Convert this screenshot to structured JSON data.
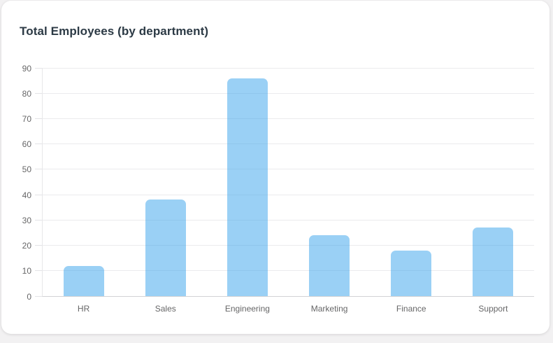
{
  "card": {
    "title": "Total Employees (by department)"
  },
  "chart_data": {
    "type": "bar",
    "title": "Total Employees (by department)",
    "categories": [
      "HR",
      "Sales",
      "Engineering",
      "Marketing",
      "Finance",
      "Support"
    ],
    "values": [
      12,
      38,
      86,
      24,
      18,
      27
    ],
    "xlabel": "",
    "ylabel": "",
    "ylim": [
      0,
      90
    ],
    "ytick_step": 10,
    "ytick_labels": [
      "0",
      "10",
      "20",
      "30",
      "40",
      "50",
      "60",
      "70",
      "80",
      "90"
    ],
    "grid": "horizontal gridlines on",
    "legend": "none",
    "colors": {
      "bar_fill": "rgba(54,162,235,0.5)",
      "gridline": "#ebebed",
      "axis_border": "#d2d2d5",
      "tick_text": "#666667",
      "title_text": "#2c3a45",
      "card_background": "#ffffff",
      "page_background": "#f2f1f2"
    }
  }
}
